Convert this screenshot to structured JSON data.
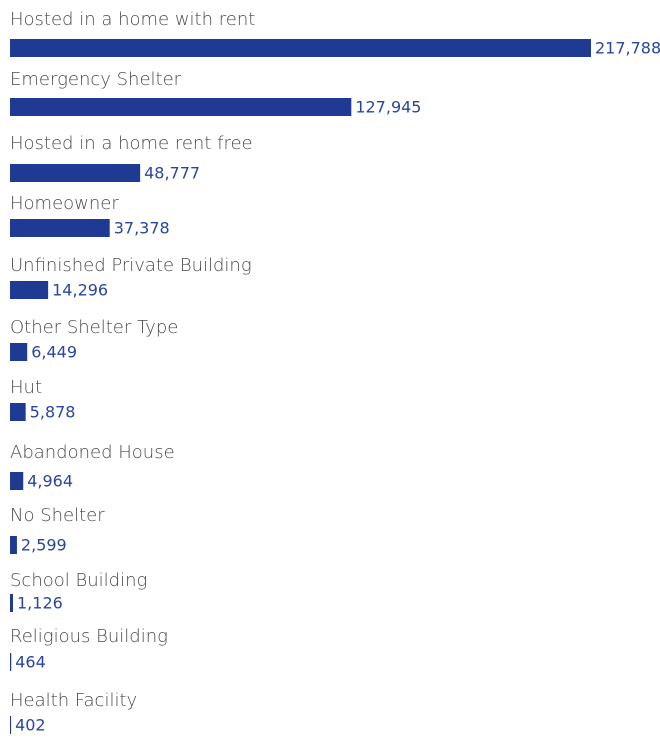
{
  "chart_data": {
    "type": "bar",
    "orientation": "horizontal",
    "color": "#1f3a93",
    "categories": [
      "Hosted in a home with rent",
      "Emergency Shelter",
      "Hosted in a home rent free",
      "Homeowner",
      "Unfinished Private Building",
      "Other Shelter Type",
      "Hut",
      "Abandoned House",
      "No Shelter",
      "School Building",
      "Religious Building",
      "Health Facility"
    ],
    "values": [
      217788,
      127945,
      48777,
      37378,
      14296,
      6449,
      5878,
      4964,
      2599,
      1126,
      464,
      402
    ],
    "value_labels": [
      "217,788",
      "127,945",
      "48,777",
      "37,378",
      "14,296",
      "6,449",
      "5,878",
      "4,964",
      "2,599",
      "1,126",
      "464",
      "402"
    ]
  }
}
